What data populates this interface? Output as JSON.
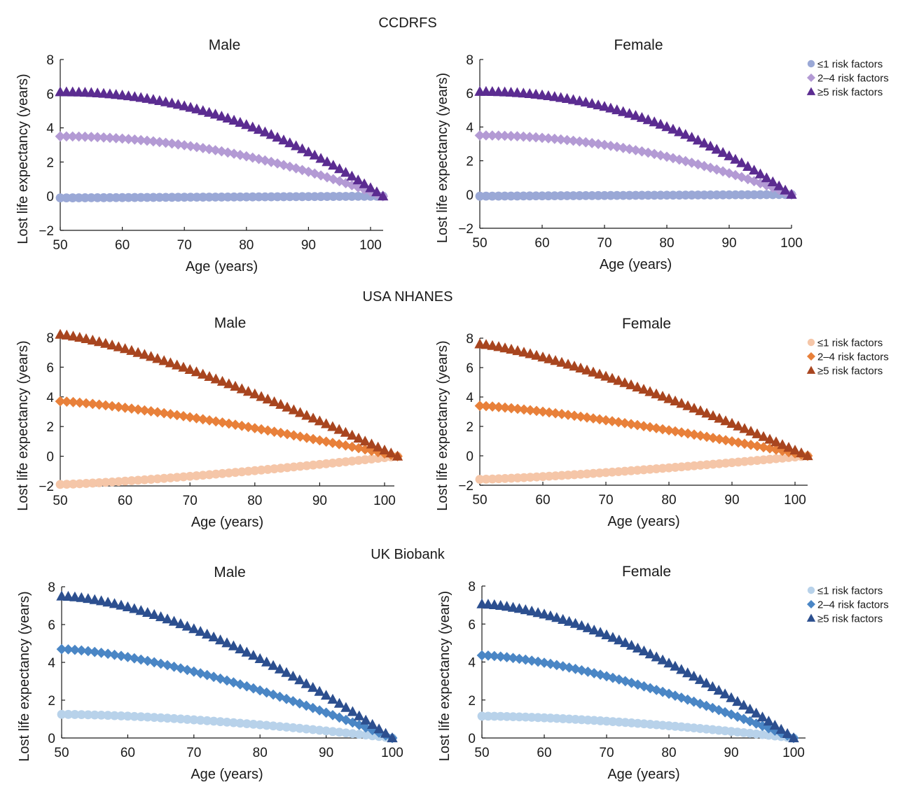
{
  "chart_data": [
    {
      "type": "scatter",
      "section": "CCDRFS",
      "title": "Male",
      "xlabel": "Age (years)",
      "ylabel": "Lost life expectancy (years)",
      "xlim": [
        50,
        102
      ],
      "ylim": [
        -2,
        8
      ],
      "xticks": [
        "50",
        "60",
        "70",
        "80",
        "90",
        "100"
      ],
      "yticks": [
        "−2",
        "0",
        "2",
        "4",
        "6",
        "8"
      ],
      "palette": "purple",
      "legend": "none",
      "series": [
        {
          "name": "≤1 risk factors",
          "marker": "circle",
          "color": "#9aa8d6",
          "start": -0.1,
          "end": 0.0,
          "shape": 1.0
        },
        {
          "name": "2–4 risk factors",
          "marker": "diamond",
          "color": "#b39ad4",
          "start": 3.5,
          "end": 0.0,
          "shape": 2.0
        },
        {
          "name": "≥5 risk factors",
          "marker": "triangle",
          "color": "#5b2c91",
          "start": 6.1,
          "end": 0.0,
          "shape": 2.1
        }
      ]
    },
    {
      "type": "scatter",
      "section": "CCDRFS",
      "title": "Female",
      "xlabel": "Age (years)",
      "ylabel": "Lost life expectancy (years)",
      "xlim": [
        50,
        100
      ],
      "ylim": [
        -2,
        8
      ],
      "xticks": [
        "50",
        "60",
        "70",
        "80",
        "90",
        "100"
      ],
      "yticks": [
        "−2",
        "0",
        "2",
        "4",
        "6",
        "8"
      ],
      "palette": "purple",
      "legend": "right",
      "series": [
        {
          "name": "≤1 risk factors",
          "marker": "circle",
          "color": "#9aa8d6",
          "start": -0.1,
          "end": 0.0,
          "shape": 1.0
        },
        {
          "name": "2–4 risk factors",
          "marker": "diamond",
          "color": "#b39ad4",
          "start": 3.5,
          "end": 0.0,
          "shape": 2.0
        },
        {
          "name": "≥5 risk factors",
          "marker": "triangle",
          "color": "#5b2c91",
          "start": 6.1,
          "end": 0.0,
          "shape": 2.1
        }
      ]
    },
    {
      "type": "scatter",
      "section": "USA NHANES",
      "title": "Male",
      "xlabel": "Age (years)",
      "ylabel": "Lost life expectancy (years)",
      "xlim": [
        50,
        102
      ],
      "ylim": [
        -2,
        8
      ],
      "xticks": [
        "50",
        "60",
        "70",
        "80",
        "90",
        "100"
      ],
      "yticks": [
        "−2",
        "0",
        "2",
        "4",
        "6",
        "8"
      ],
      "palette": "orange",
      "legend": "none",
      "series": [
        {
          "name": "≤1 risk factors",
          "marker": "circle",
          "color": "#f5c6a8",
          "start": -1.9,
          "end": 0.0,
          "shape": 1.3
        },
        {
          "name": "2–4 risk factors",
          "marker": "diamond",
          "color": "#e8803a",
          "start": 3.7,
          "end": 0.0,
          "shape": 1.3
        },
        {
          "name": "≥5 risk factors",
          "marker": "triangle",
          "color": "#a8451f",
          "start": 8.2,
          "end": 0.0,
          "shape": 1.3
        }
      ]
    },
    {
      "type": "scatter",
      "section": "USA NHANES",
      "title": "Female",
      "xlabel": "Age (years)",
      "ylabel": "Lost life expectancy (years)",
      "xlim": [
        50,
        102
      ],
      "ylim": [
        -2,
        8
      ],
      "xticks": [
        "50",
        "60",
        "70",
        "80",
        "90",
        "100"
      ],
      "yticks": [
        "−2",
        "0",
        "2",
        "4",
        "6",
        "8"
      ],
      "palette": "orange",
      "legend": "right",
      "series": [
        {
          "name": "≤1 risk factors",
          "marker": "circle",
          "color": "#f5c6a8",
          "start": -1.6,
          "end": 0.0,
          "shape": 1.3
        },
        {
          "name": "2–4 risk factors",
          "marker": "diamond",
          "color": "#e8803a",
          "start": 3.4,
          "end": 0.0,
          "shape": 1.3
        },
        {
          "name": "≥5 risk factors",
          "marker": "triangle",
          "color": "#a8451f",
          "start": 7.6,
          "end": 0.0,
          "shape": 1.3
        }
      ]
    },
    {
      "type": "scatter",
      "section": "UK Biobank",
      "title": "Male",
      "xlabel": "Age (years)",
      "ylabel": "Lost life expectancy (years)",
      "xlim": [
        50,
        100
      ],
      "ylim": [
        0,
        8
      ],
      "xticks": [
        "50",
        "60",
        "70",
        "80",
        "90",
        "100"
      ],
      "yticks": [
        "0",
        "2",
        "4",
        "6",
        "8"
      ],
      "palette": "blue",
      "legend": "none",
      "series": [
        {
          "name": "≤1 risk factors",
          "marker": "circle",
          "color": "#b8d2ea",
          "start": 1.25,
          "end": 0.0,
          "shape": 1.6
        },
        {
          "name": "2–4 risk factors",
          "marker": "diamond",
          "color": "#4a86c5",
          "start": 4.7,
          "end": 0.0,
          "shape": 1.5
        },
        {
          "name": "≥5 risk factors",
          "marker": "triangle",
          "color": "#2c4f8f",
          "start": 7.5,
          "end": 0.0,
          "shape": 1.6
        }
      ]
    },
    {
      "type": "scatter",
      "section": "UK Biobank",
      "title": "Female",
      "xlabel": "Age (years)",
      "ylabel": "Lost life expectancy (years)",
      "xlim": [
        50,
        100
      ],
      "ylim": [
        0,
        8
      ],
      "xticks": [
        "50",
        "60",
        "70",
        "80",
        "90",
        "100"
      ],
      "yticks": [
        "0",
        "2",
        "4",
        "6",
        "8"
      ],
      "palette": "blue",
      "legend": "right",
      "series": [
        {
          "name": "≤1 risk factors",
          "marker": "circle",
          "color": "#b8d2ea",
          "start": 1.15,
          "end": 0.0,
          "shape": 1.6
        },
        {
          "name": "2–4 risk factors",
          "marker": "diamond",
          "color": "#4a86c5",
          "start": 4.35,
          "end": 0.0,
          "shape": 1.5
        },
        {
          "name": "≥5 risk factors",
          "marker": "triangle",
          "color": "#2c4f8f",
          "start": 7.05,
          "end": 0.0,
          "shape": 1.6
        }
      ]
    }
  ]
}
